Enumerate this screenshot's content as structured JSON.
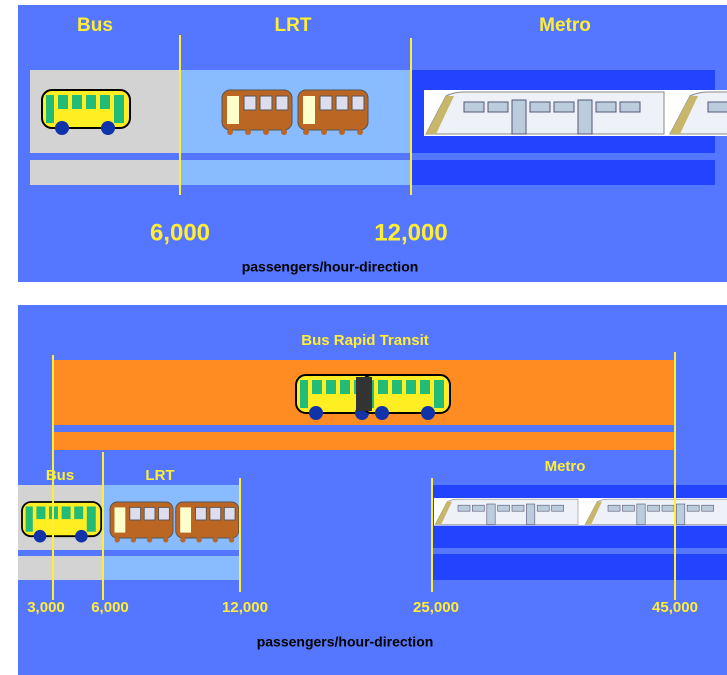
{
  "panels": [
    {
      "modes": [
        "Bus",
        "LRT",
        "Metro"
      ],
      "ticks": [
        "6,000",
        "12,000"
      ],
      "axis_label": "passengers/hour-direction"
    },
    {
      "title": "Bus Rapid Transit",
      "modes": [
        "Bus",
        "LRT",
        "Metro"
      ],
      "ticks": [
        "3,000",
        "6,000",
        "12,000",
        "25,000",
        "45,000"
      ],
      "axis_label": "passengers/hour-direction"
    }
  ]
}
